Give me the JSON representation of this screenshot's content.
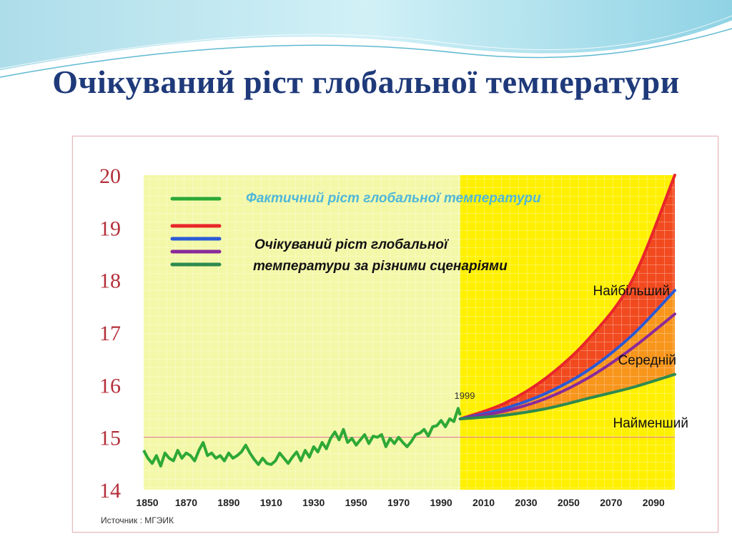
{
  "title": "Очікуваний ріст глобальної температури",
  "colors": {
    "title": "#1f3a7a",
    "observed": "#2ea836",
    "scenario_high": "#e8262a",
    "scenario_blue": "#2b59d6",
    "scenario_purple": "#8a2a9a",
    "scenario_low": "#2e8a4e",
    "hist_fill": "#f3f8a8",
    "proj_fill": "#fff000",
    "zone_red": "#f24a1f",
    "zone_orange": "#f9a21b",
    "reference_line": "#e06c8a"
  },
  "chart_data": {
    "type": "line",
    "title": "",
    "xlabel": "",
    "ylabel": "",
    "xlim": [
      1850,
      2100
    ],
    "ylim": [
      14,
      20
    ],
    "y_ticks": [
      "14",
      "15",
      "16",
      "17",
      "18",
      "19",
      "20"
    ],
    "x_ticks": [
      "1850",
      "1870",
      "1890",
      "1910",
      "1930",
      "1950",
      "1970",
      "1990",
      "2010",
      "2030",
      "2050",
      "2070",
      "2090"
    ],
    "grid": true,
    "legend_position": "top-left",
    "legend_observed": "Фактичний ріст глобальної температури",
    "legend_projected": [
      "Очікуваний ріст глобальної",
      "температури за різними сценаріями"
    ],
    "annotations": {
      "year_marker": "1999",
      "highest": "Найбільший",
      "medium": "Середній",
      "lowest": "Найменший",
      "source": "Источник : МГЭИК"
    },
    "reference_line_y": 15,
    "observed": {
      "x": [
        1850,
        1852,
        1854,
        1856,
        1858,
        1860,
        1862,
        1864,
        1866,
        1868,
        1870,
        1872,
        1874,
        1876,
        1878,
        1880,
        1882,
        1884,
        1886,
        1888,
        1890,
        1892,
        1894,
        1896,
        1898,
        1900,
        1902,
        1904,
        1906,
        1908,
        1910,
        1912,
        1914,
        1916,
        1918,
        1920,
        1922,
        1924,
        1926,
        1928,
        1930,
        1932,
        1934,
        1936,
        1938,
        1940,
        1942,
        1944,
        1946,
        1948,
        1950,
        1952,
        1954,
        1956,
        1958,
        1960,
        1962,
        1964,
        1966,
        1968,
        1970,
        1972,
        1974,
        1976,
        1978,
        1980,
        1982,
        1984,
        1986,
        1988,
        1990,
        1992,
        1994,
        1996,
        1998,
        1999
      ],
      "y": [
        14.75,
        14.6,
        14.5,
        14.65,
        14.45,
        14.7,
        14.6,
        14.55,
        14.75,
        14.6,
        14.7,
        14.65,
        14.55,
        14.75,
        14.9,
        14.65,
        14.7,
        14.6,
        14.65,
        14.55,
        14.7,
        14.6,
        14.65,
        14.72,
        14.85,
        14.7,
        14.58,
        14.48,
        14.6,
        14.5,
        14.48,
        14.55,
        14.7,
        14.6,
        14.5,
        14.62,
        14.72,
        14.55,
        14.75,
        14.62,
        14.82,
        14.72,
        14.9,
        14.78,
        14.98,
        15.1,
        14.95,
        15.15,
        14.9,
        14.98,
        14.85,
        14.95,
        15.05,
        14.88,
        15.02,
        15.0,
        15.05,
        14.82,
        14.98,
        14.88,
        15.0,
        14.9,
        14.82,
        14.92,
        15.05,
        15.08,
        15.15,
        15.02,
        15.2,
        15.22,
        15.32,
        15.2,
        15.35,
        15.3,
        15.55,
        15.42
      ]
    },
    "series": [
      {
        "x": [
          1999,
          2020,
          2040,
          2060,
          2080,
          2100
        ],
        "y": [
          15.35,
          15.65,
          16.15,
          16.9,
          18.0,
          20.0
        ]
      },
      {
        "x": [
          1999,
          2020,
          2040,
          2060,
          2080,
          2100
        ],
        "y": [
          15.35,
          15.55,
          15.85,
          16.3,
          16.95,
          17.8
        ]
      },
      {
        "x": [
          1999,
          2020,
          2040,
          2060,
          2080,
          2100
        ],
        "y": [
          15.35,
          15.5,
          15.75,
          16.15,
          16.7,
          17.35
        ]
      },
      {
        "x": [
          1999,
          2020,
          2040,
          2060,
          2080,
          2100
        ],
        "y": [
          15.35,
          15.42,
          15.55,
          15.75,
          15.95,
          16.2
        ]
      }
    ]
  }
}
